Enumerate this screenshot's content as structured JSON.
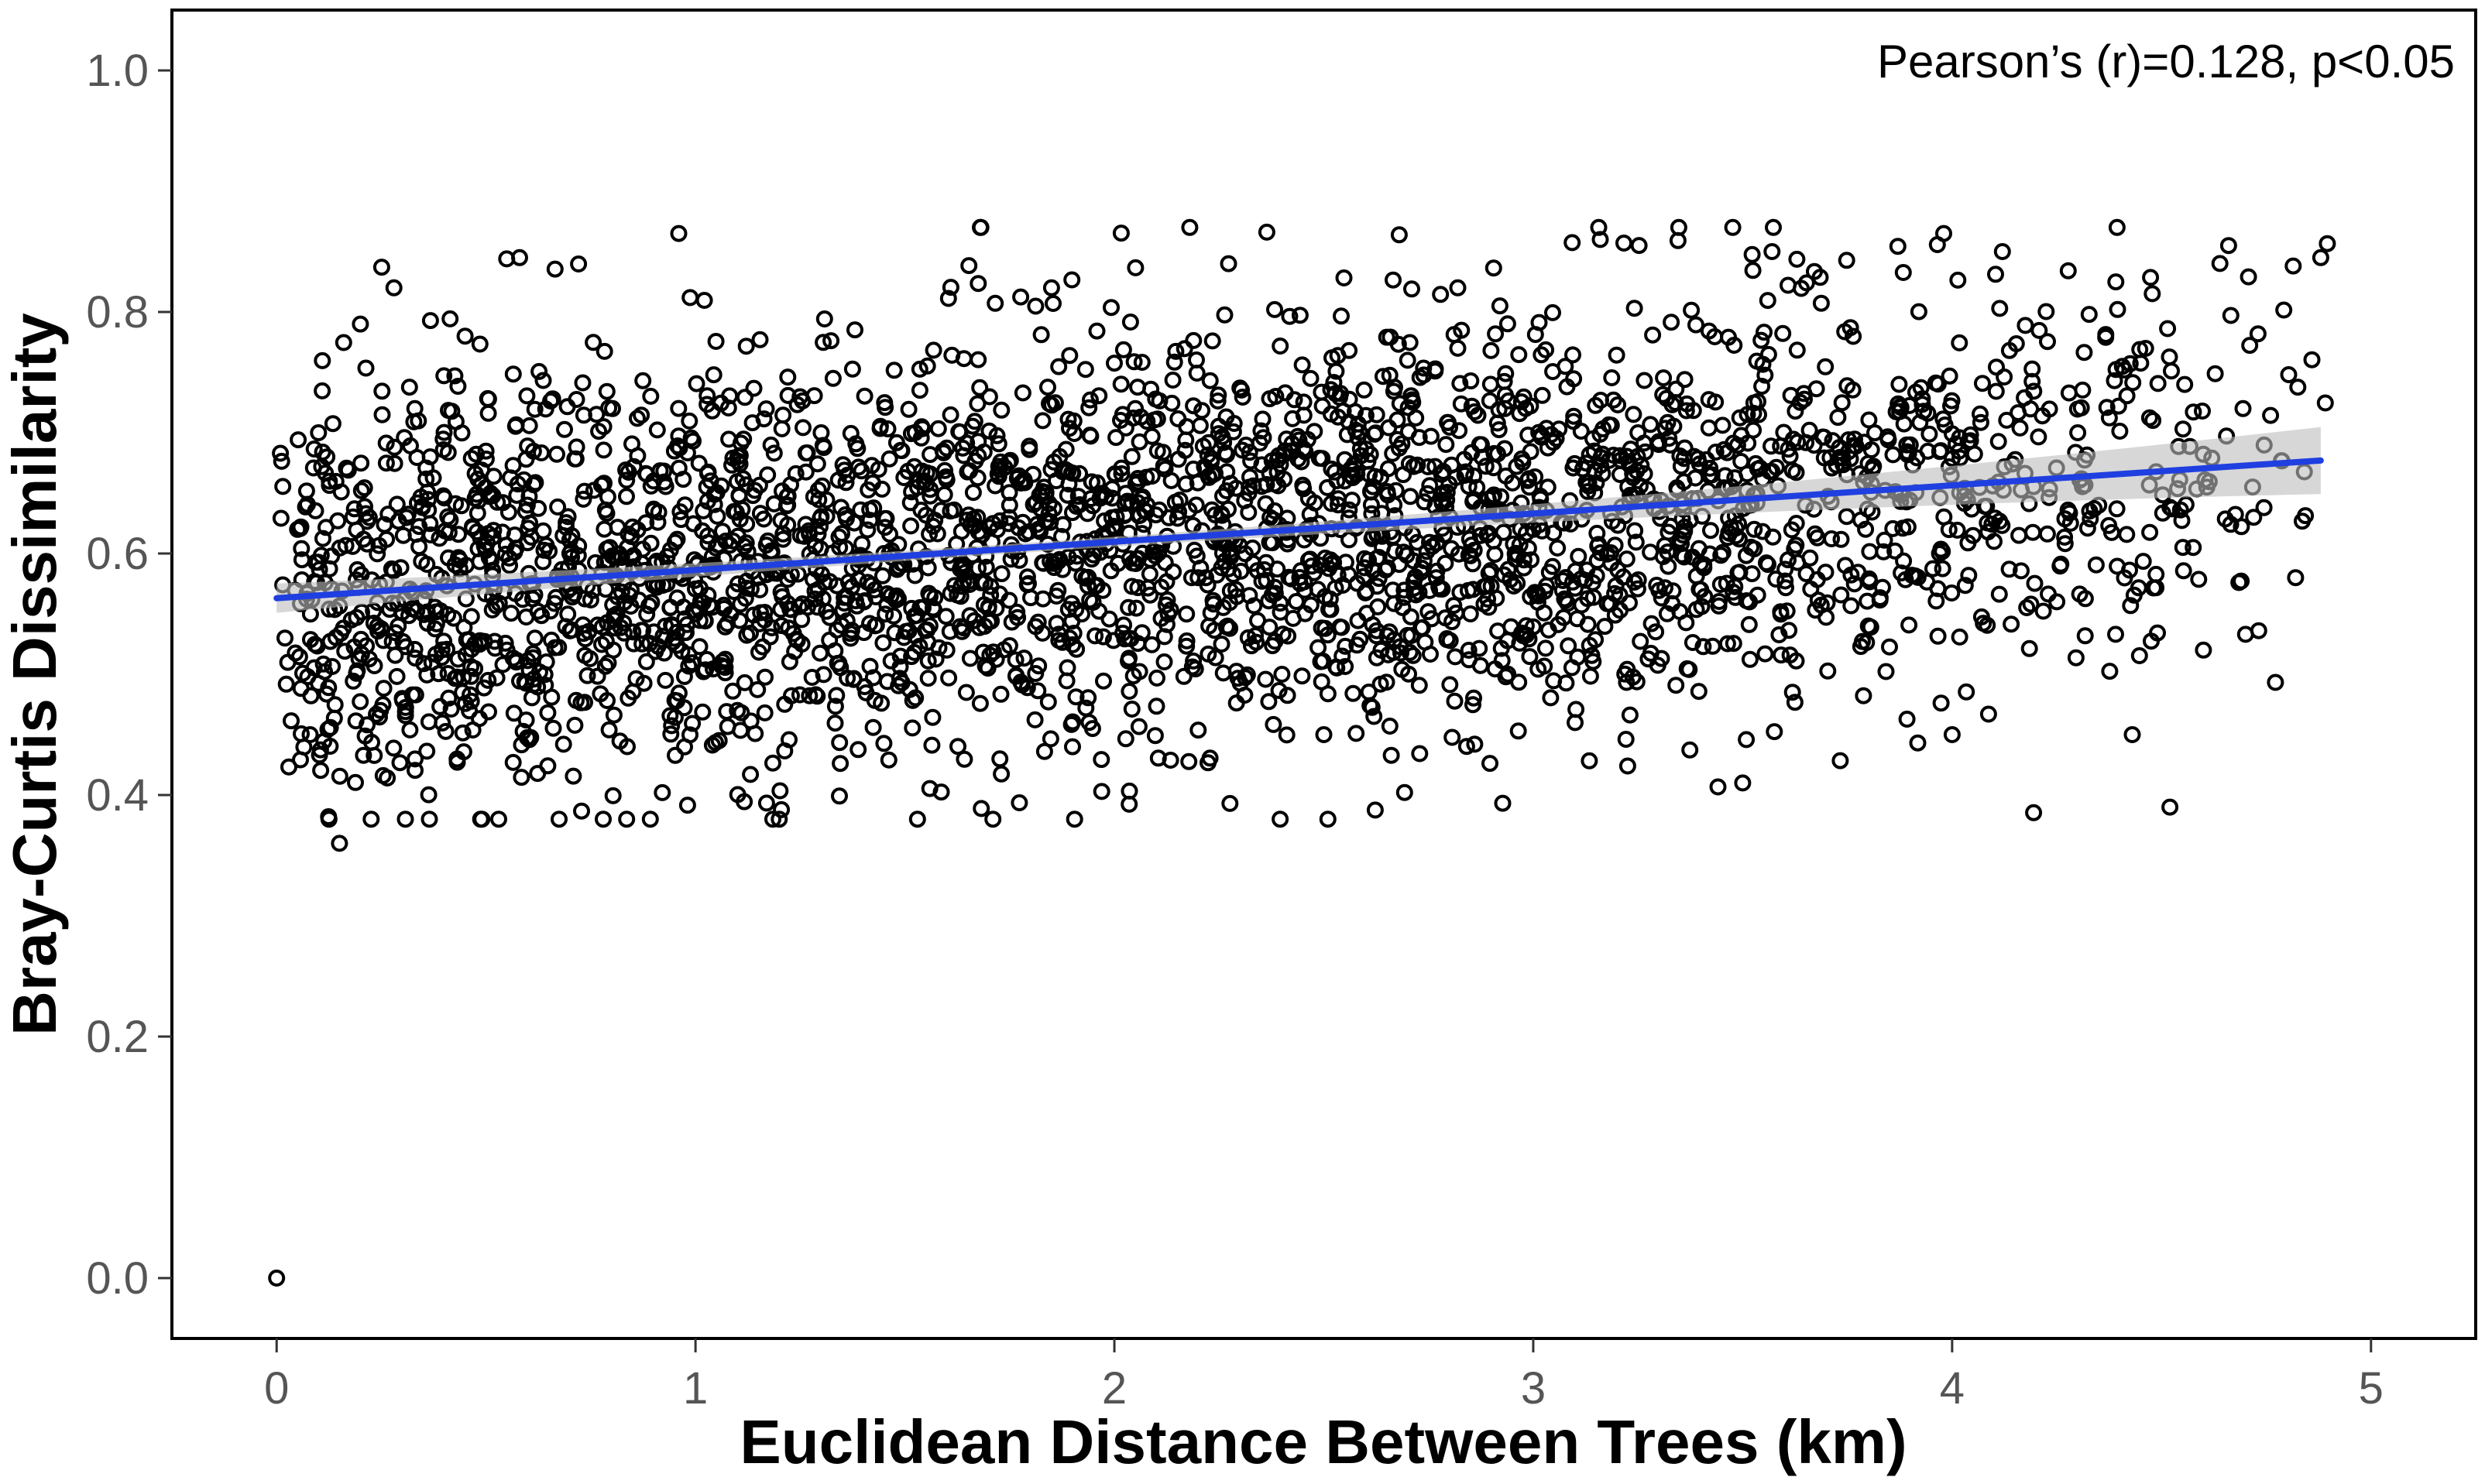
{
  "chart_data": {
    "type": "scatter",
    "title": "",
    "xlabel": "Euclidean Distance Between Trees (km)",
    "ylabel": "Bray-Curtis Dissimilarity",
    "annotation": "Pearson’s (r)=0.128, p<0.05",
    "xlim": [
      -0.25,
      5.25
    ],
    "ylim": [
      -0.05,
      1.05
    ],
    "x_ticks": [
      0,
      1,
      2,
      3,
      4,
      5
    ],
    "x_tick_labels": [
      "0",
      "1",
      "2",
      "3",
      "4",
      "5"
    ],
    "y_ticks": [
      0.0,
      0.2,
      0.4,
      0.6,
      0.8,
      1.0
    ],
    "y_tick_labels": [
      "0.0",
      "0.2",
      "0.4",
      "0.6",
      "0.8",
      "1.0"
    ],
    "grid": false,
    "regression_line": {
      "x": [
        0.0,
        4.88
      ],
      "y": [
        0.563,
        0.677
      ],
      "color": "#1f3fe0",
      "confidence_band_color": "#bdbdbd"
    },
    "point_color": "#000000",
    "n_points_approx": 3200,
    "representative_points": [
      [
        0.0,
        0.0
      ],
      [
        0.15,
        0.36
      ],
      [
        1.2,
        0.38
      ],
      [
        1.53,
        0.38
      ],
      [
        4.52,
        0.39
      ],
      [
        0.96,
        0.865
      ],
      [
        1.68,
        0.87
      ],
      [
        2.18,
        0.87
      ],
      [
        3.98,
        0.865
      ],
      [
        4.66,
        0.855
      ],
      [
        4.88,
        0.845
      ],
      [
        3.57,
        0.85
      ],
      [
        0.58,
        0.845
      ],
      [
        4.12,
        0.85
      ],
      [
        3.16,
        0.86
      ],
      [
        0.28,
        0.82
      ],
      [
        0.45,
        0.78
      ],
      [
        0.33,
        0.72
      ],
      [
        0.12,
        0.68
      ],
      [
        0.05,
        0.62
      ],
      [
        0.02,
        0.53
      ],
      [
        0.08,
        0.45
      ],
      [
        0.3,
        0.48
      ],
      [
        0.55,
        0.52
      ],
      [
        0.7,
        0.6
      ],
      [
        0.9,
        0.66
      ],
      [
        1.0,
        0.55
      ],
      [
        1.1,
        0.47
      ],
      [
        1.3,
        0.7
      ],
      [
        1.45,
        0.6
      ],
      [
        1.6,
        0.52
      ],
      [
        1.75,
        0.64
      ],
      [
        1.9,
        0.44
      ],
      [
        2.05,
        0.72
      ],
      [
        2.2,
        0.58
      ],
      [
        2.4,
        0.5
      ],
      [
        2.55,
        0.66
      ],
      [
        2.7,
        0.76
      ],
      [
        2.85,
        0.55
      ],
      [
        3.0,
        0.62
      ],
      [
        3.1,
        0.46
      ],
      [
        3.25,
        0.7
      ],
      [
        3.4,
        0.57
      ],
      [
        3.5,
        0.41
      ],
      [
        3.65,
        0.64
      ],
      [
        3.8,
        0.54
      ],
      [
        3.9,
        0.69
      ],
      [
        4.0,
        0.45
      ],
      [
        4.1,
        0.61
      ],
      [
        4.25,
        0.56
      ],
      [
        4.35,
        0.64
      ],
      [
        4.43,
        0.45
      ],
      [
        4.6,
        0.52
      ],
      [
        4.72,
        0.63
      ],
      [
        4.82,
        0.58
      ],
      [
        3.97,
        0.6
      ],
      [
        4.3,
        0.7
      ],
      [
        2.5,
        0.45
      ],
      [
        1.85,
        0.82
      ],
      [
        0.2,
        0.79
      ]
    ]
  }
}
